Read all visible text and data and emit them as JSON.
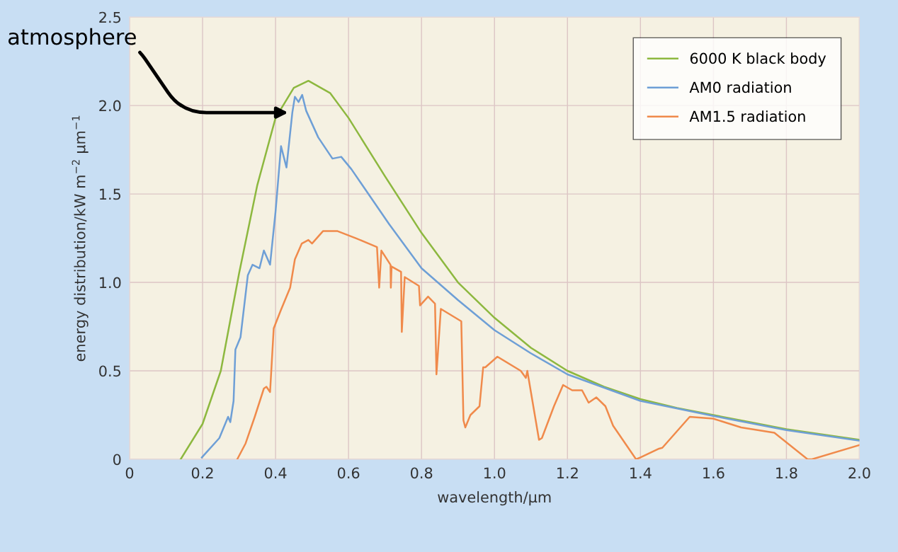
{
  "chart_data": {
    "type": "line",
    "xlabel": "wavelength/µm",
    "ylabel": "energy distribution/kW m$^{−2}$ µm$^{−1}$",
    "xlim": [
      0,
      2.0
    ],
    "ylim": [
      0,
      2.5
    ],
    "xticks": [
      0,
      0.2,
      0.4,
      0.6,
      0.8,
      {
        "value": 1.0,
        "label": "1.0"
      },
      1.2,
      1.4,
      1.6,
      1.8,
      {
        "value": 2.0,
        "label": "2.0"
      }
    ],
    "yticks": [
      0,
      0.5,
      {
        "value": 1.0,
        "label": "1.0"
      },
      1.5,
      {
        "value": 2.0,
        "label": "2.0"
      },
      2.5
    ],
    "grid": true,
    "legend": "top right",
    "marker": "none",
    "line_style": "solid",
    "annotations": [
      {
        "text": "atmosphere",
        "x": 0.44,
        "y": 1.96
      }
    ],
    "series": [
      {
        "name": "6000 K black body",
        "color": "#8db83f",
        "x": [
          0.14,
          0.2,
          0.25,
          0.3,
          0.35,
          0.4,
          0.45,
          0.49,
          0.55,
          0.6,
          0.7,
          0.8,
          0.9,
          1.0,
          1.1,
          1.2,
          1.3,
          1.4,
          1.5,
          1.6,
          1.7,
          1.8,
          1.9,
          2.0
        ],
        "values": [
          0,
          0.2,
          0.5,
          1.05,
          1.55,
          1.93,
          2.1,
          2.14,
          2.07,
          1.93,
          1.6,
          1.28,
          1.0,
          0.8,
          0.63,
          0.5,
          0.41,
          0.34,
          0.29,
          0.25,
          0.21,
          0.17,
          0.14,
          0.11
        ]
      },
      {
        "name": "AM0 radiation",
        "color": "#6e9fd6",
        "x": [
          0.198,
          0.246,
          0.27,
          0.276,
          0.285,
          0.29,
          0.304,
          0.324,
          0.337,
          0.356,
          0.368,
          0.385,
          0.4,
          0.415,
          0.43,
          0.446,
          0.453,
          0.463,
          0.473,
          0.484,
          0.517,
          0.556,
          0.58,
          0.608,
          0.711,
          0.8,
          0.9,
          1.0,
          1.099,
          1.2,
          1.4,
          1.6,
          1.8,
          2.0
        ],
        "values": [
          0.01,
          0.12,
          0.24,
          0.21,
          0.33,
          0.62,
          0.69,
          1.04,
          1.1,
          1.08,
          1.18,
          1.1,
          1.4,
          1.77,
          1.65,
          1.96,
          2.05,
          2.02,
          2.06,
          1.97,
          1.82,
          1.7,
          1.71,
          1.64,
          1.33,
          1.08,
          0.9,
          0.73,
          0.6,
          0.48,
          0.33,
          0.245,
          0.165,
          0.105
        ]
      },
      {
        "name": "AM1.5 radiation",
        "color": "#f08a4b",
        "x": [
          0.295,
          0.318,
          0.343,
          0.368,
          0.375,
          0.385,
          0.395,
          0.414,
          0.44,
          0.453,
          0.472,
          0.49,
          0.5,
          0.53,
          0.57,
          0.62,
          0.678,
          0.684,
          0.69,
          0.715,
          0.716,
          0.718,
          0.744,
          0.746,
          0.754,
          0.793,
          0.796,
          0.818,
          0.837,
          0.841,
          0.853,
          0.909,
          0.915,
          0.92,
          0.934,
          0.959,
          0.969,
          0.975,
          1.008,
          1.072,
          1.086,
          1.09,
          1.122,
          1.13,
          1.163,
          1.188,
          1.213,
          1.24,
          1.258,
          1.279,
          1.304,
          1.325,
          1.388,
          1.4,
          1.451,
          1.46,
          1.535,
          1.599,
          1.676,
          1.767,
          1.858,
          1.87,
          2.0
        ],
        "values": [
          0,
          0.09,
          0.24,
          0.4,
          0.41,
          0.38,
          0.74,
          0.84,
          0.97,
          1.13,
          1.22,
          1.24,
          1.22,
          1.29,
          1.29,
          1.25,
          1.2,
          0.97,
          1.18,
          1.1,
          0.97,
          1.09,
          1.06,
          0.72,
          1.03,
          0.98,
          0.87,
          0.92,
          0.88,
          0.48,
          0.85,
          0.78,
          0.22,
          0.18,
          0.25,
          0.3,
          0.52,
          0.52,
          0.58,
          0.5,
          0.46,
          0.5,
          0.11,
          0.12,
          0.3,
          0.42,
          0.39,
          0.39,
          0.32,
          0.35,
          0.3,
          0.19,
          0,
          0.01,
          0.06,
          0.065,
          0.24,
          0.23,
          0.18,
          0.15,
          0,
          0,
          0.08
        ]
      }
    ]
  }
}
